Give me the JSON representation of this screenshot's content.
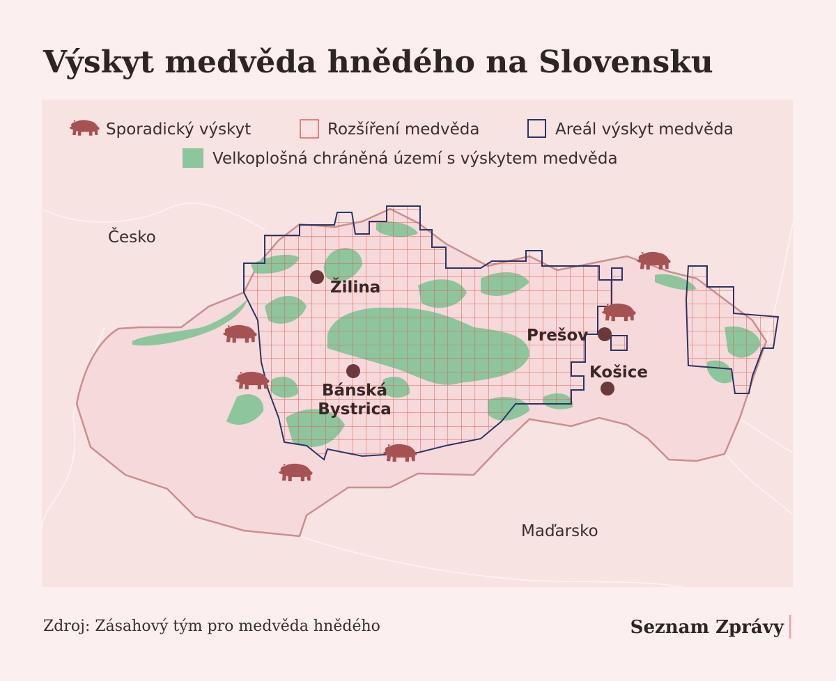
{
  "header": {
    "title": "Výskyt medvěda hnědého na Slovensku"
  },
  "legend": {
    "items": [
      "Sporadický výskyt",
      "Rozšíření medvěda",
      "Areál výskyt medvěda",
      "Velkoplošná chráněná území s výskytem medvěda"
    ]
  },
  "map": {
    "countries": [
      "Česko",
      "Maďarsko"
    ],
    "cities": [
      {
        "label": [
          "Žilina"
        ]
      },
      {
        "label": [
          "Bánská",
          "Bystrica"
        ]
      },
      {
        "label": [
          "Prešov"
        ]
      },
      {
        "label": [
          "Košice"
        ]
      }
    ]
  },
  "footer": {
    "source": "Zdroj: Zásahový tým pro medvěda hnědého",
    "brand": "Seznam Zprávy"
  }
}
